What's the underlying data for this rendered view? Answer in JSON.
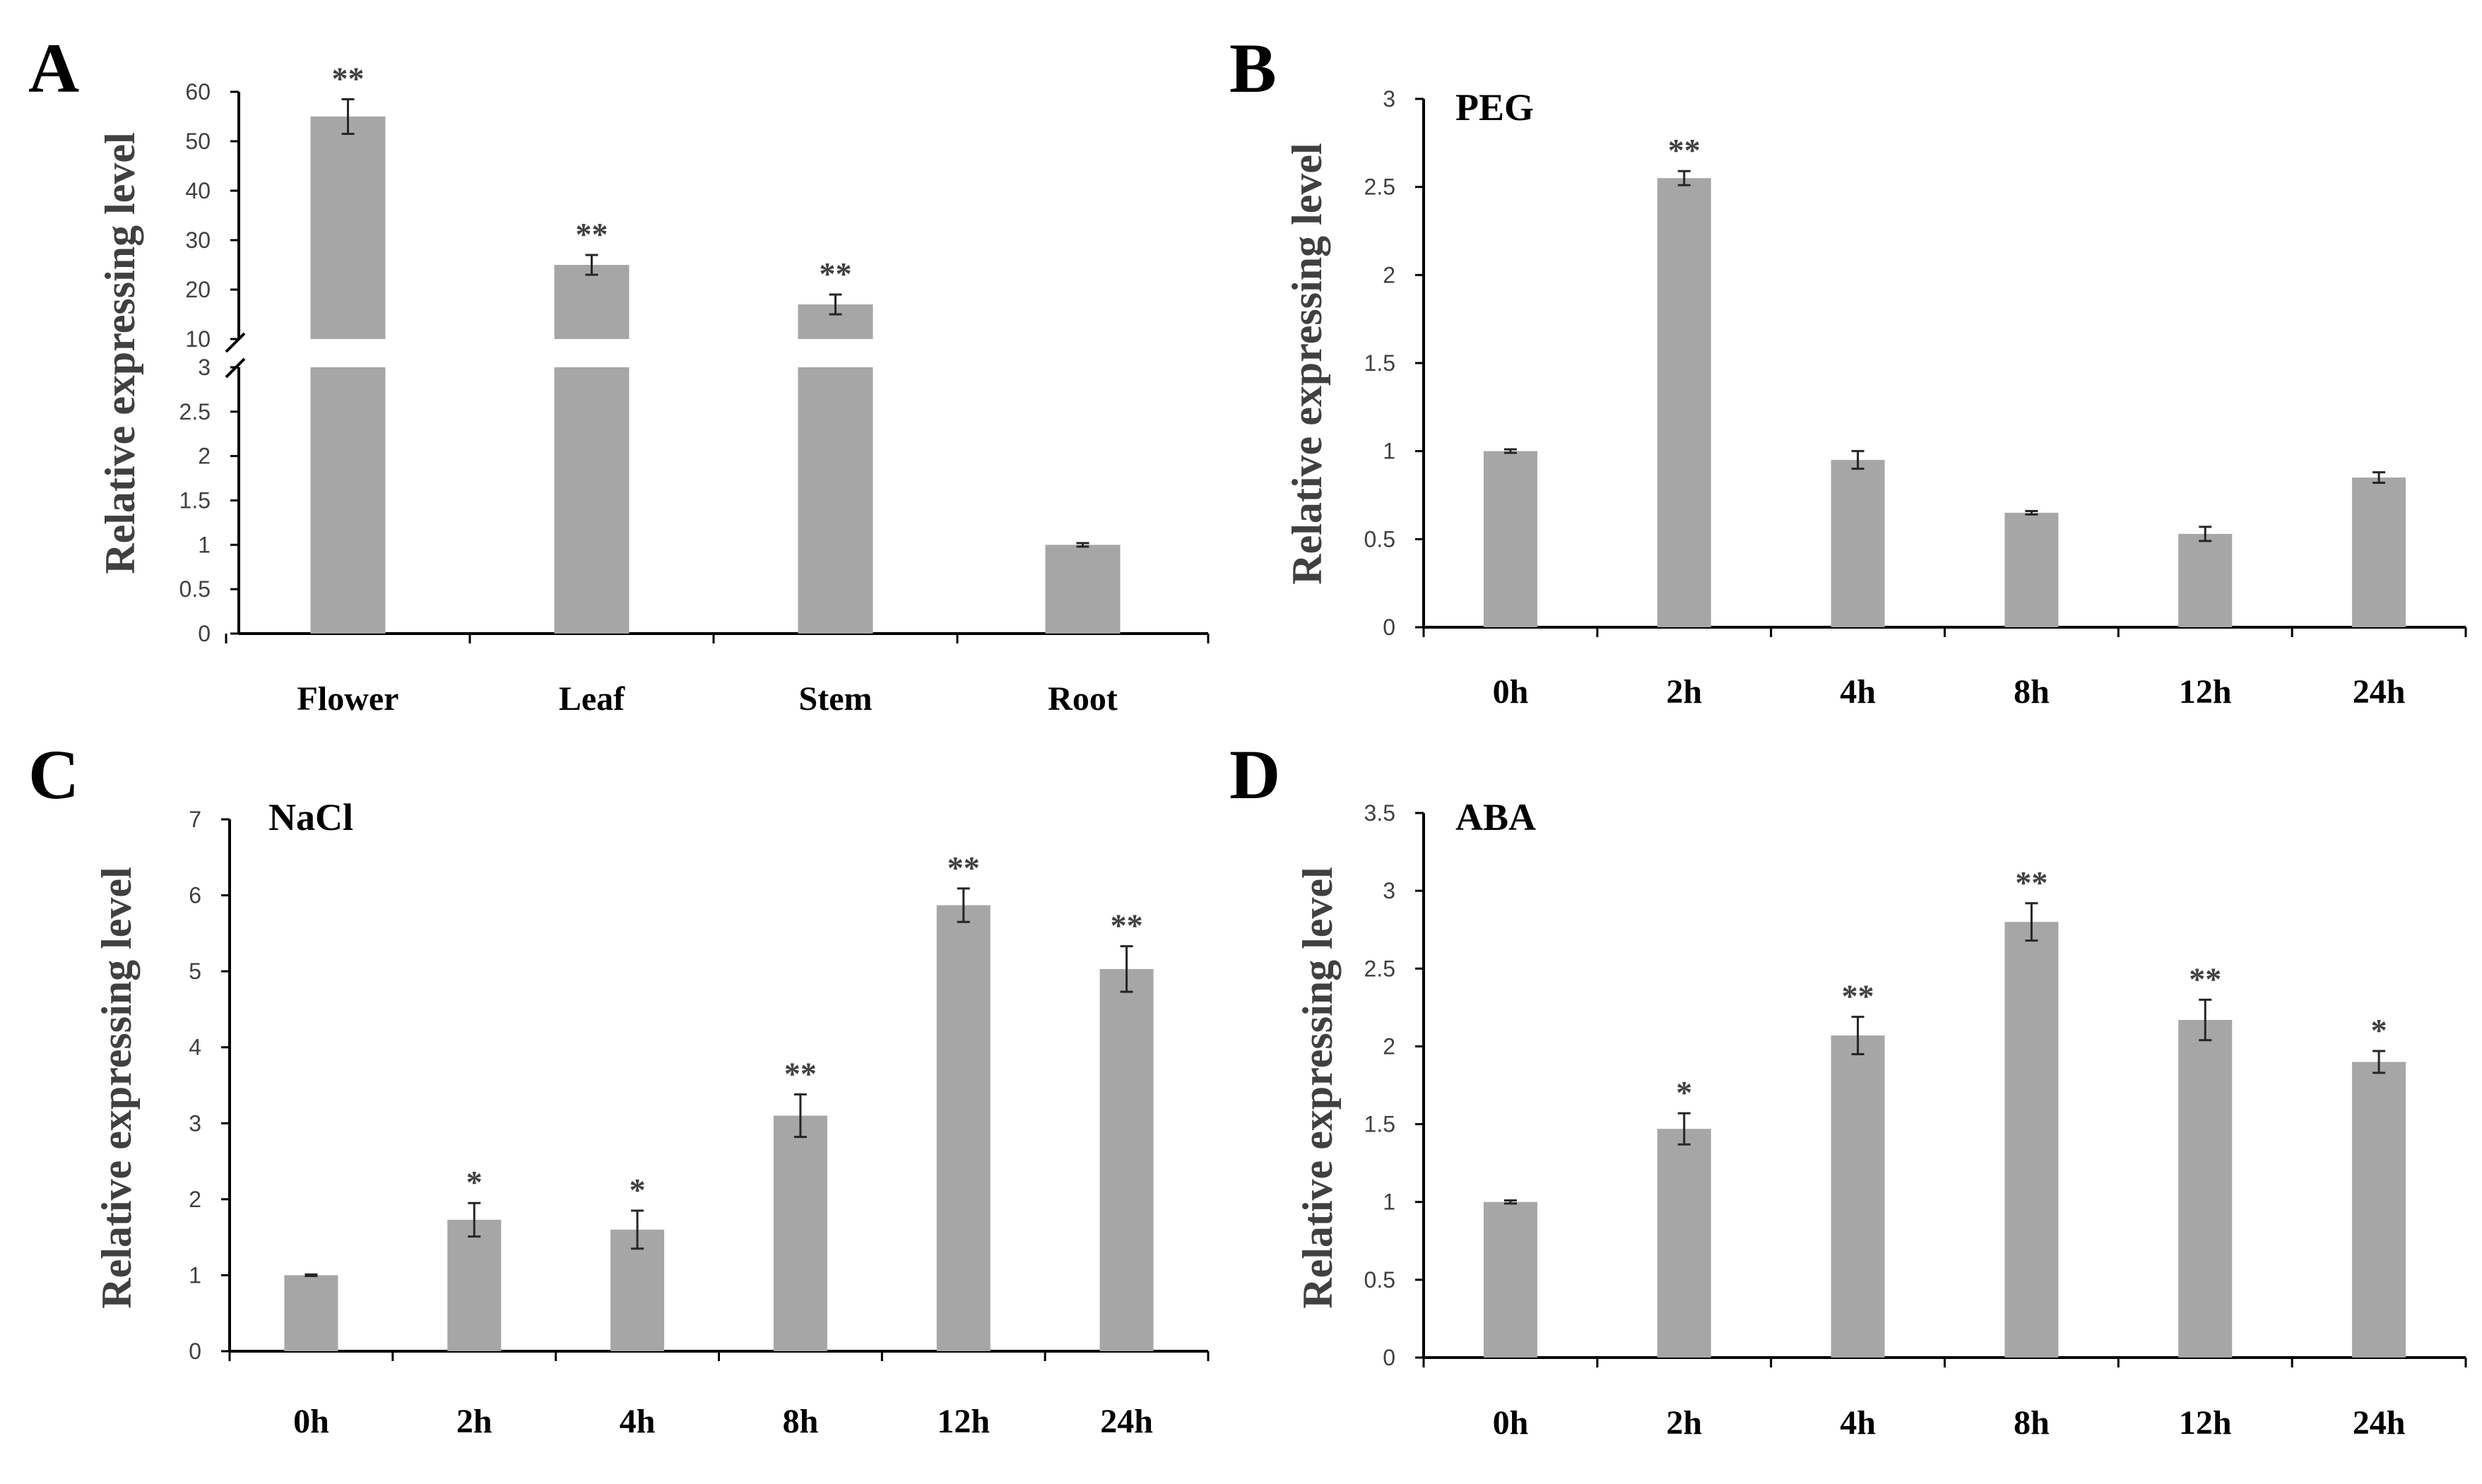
{
  "colors": {
    "bar": "#a6a6a6",
    "axis": "#000000",
    "text": "#404040"
  },
  "chart_data": [
    {
      "panel": "A",
      "type": "bar",
      "title": "",
      "ylabel": "Relative expressing level",
      "xlabel": "",
      "categories": [
        "Flower",
        "Leaf",
        "Stem",
        "Root"
      ],
      "values": [
        55,
        25,
        17,
        1
      ],
      "errors": [
        3.5,
        2,
        2,
        0.02
      ],
      "significance": [
        "**",
        "**",
        "**",
        ""
      ],
      "broken_axis": true,
      "lower_segment": {
        "ylim": [
          0,
          3
        ],
        "ticks": [
          "0",
          "0.5",
          "1",
          "1.5",
          "2",
          "2.5",
          "3"
        ]
      },
      "upper_segment": {
        "ylim": [
          10,
          60
        ],
        "ticks": [
          "10",
          "20",
          "30",
          "40",
          "50",
          "60"
        ]
      }
    },
    {
      "panel": "B",
      "type": "bar",
      "title": "PEG",
      "ylabel": "Relative expressing level",
      "xlabel": "",
      "categories": [
        "0h",
        "2h",
        "4h",
        "8h",
        "12h",
        "24h"
      ],
      "values": [
        1.0,
        2.55,
        0.95,
        0.65,
        0.53,
        0.85
      ],
      "errors": [
        0.01,
        0.04,
        0.05,
        0.01,
        0.04,
        0.03
      ],
      "significance": [
        "",
        "**",
        "",
        "",
        "",
        ""
      ],
      "ylim": [
        0,
        3
      ],
      "yticks": [
        "0",
        "0.5",
        "1",
        "1.5",
        "2",
        "2.5",
        "3"
      ]
    },
    {
      "panel": "C",
      "type": "bar",
      "title": "NaCl",
      "ylabel": "Relative expressing level",
      "xlabel": "",
      "categories": [
        "0h",
        "2h",
        "4h",
        "8h",
        "12h",
        "24h"
      ],
      "values": [
        1.0,
        1.73,
        1.6,
        3.1,
        5.87,
        5.03
      ],
      "errors": [
        0.01,
        0.22,
        0.25,
        0.28,
        0.22,
        0.3
      ],
      "significance": [
        "",
        "*",
        "*",
        "**",
        "**",
        "**"
      ],
      "ylim": [
        0,
        7
      ],
      "yticks": [
        "0",
        "1",
        "2",
        "3",
        "4",
        "5",
        "6",
        "7"
      ]
    },
    {
      "panel": "D",
      "type": "bar",
      "title": "ABA",
      "ylabel": "Relative expressing level",
      "xlabel": "",
      "categories": [
        "0h",
        "2h",
        "4h",
        "8h",
        "12h",
        "24h"
      ],
      "values": [
        1.0,
        1.47,
        2.07,
        2.8,
        2.17,
        1.9
      ],
      "errors": [
        0.01,
        0.1,
        0.12,
        0.12,
        0.13,
        0.07
      ],
      "significance": [
        "",
        "*",
        "**",
        "**",
        "**",
        "*"
      ],
      "ylim": [
        0,
        3.5
      ],
      "yticks": [
        "0",
        "0.5",
        "1",
        "1.5",
        "2",
        "2.5",
        "3",
        "3.5"
      ]
    }
  ]
}
